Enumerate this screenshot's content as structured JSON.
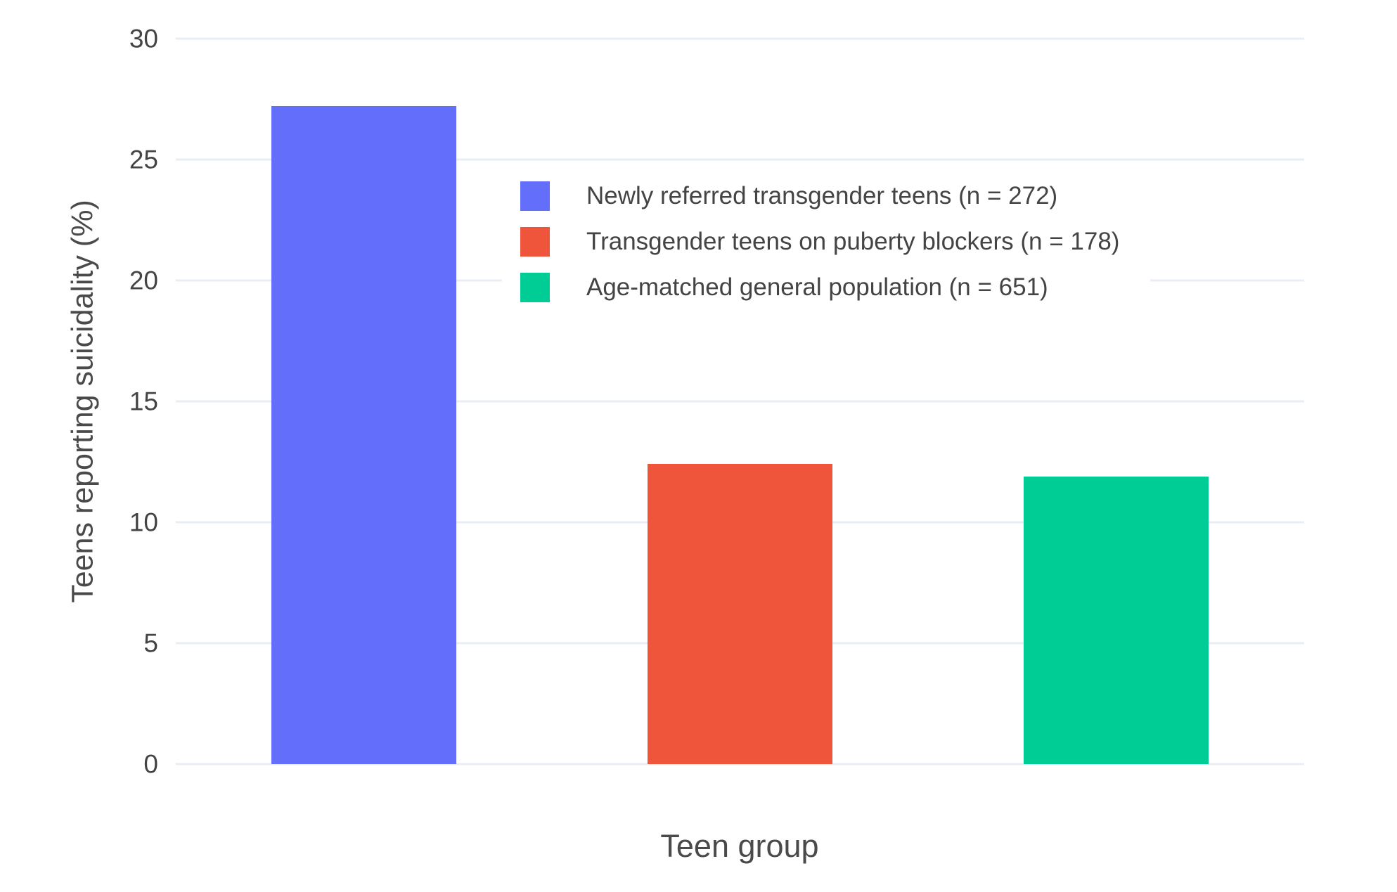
{
  "chart_data": {
    "type": "bar",
    "title": "",
    "xlabel": "Teen group",
    "ylabel": "Teens reporting suicidality (%)",
    "ylim": [
      0,
      30
    ],
    "yticks": [
      0,
      5,
      10,
      15,
      20,
      25,
      30
    ],
    "grid": true,
    "legend_position": "inside-top-center",
    "plot_bgcolor": "#ffffff",
    "gridline_color": "#e9eef6",
    "text_color": "#444444",
    "categories": [
      "Newly referred transgender teens",
      "Transgender teens on puberty blockers",
      "Age-matched general population"
    ],
    "series": [
      {
        "name": "Newly referred transgender teens (n = 272)",
        "n": 272,
        "value": 27.2,
        "color": "#636EFA"
      },
      {
        "name": "Transgender teens on puberty blockers (n = 178)",
        "n": 178,
        "value": 12.4,
        "color": "#EF553B"
      },
      {
        "name": "Age-matched general population (n = 651)",
        "n": 651,
        "value": 11.9,
        "color": "#00CC96"
      }
    ]
  }
}
